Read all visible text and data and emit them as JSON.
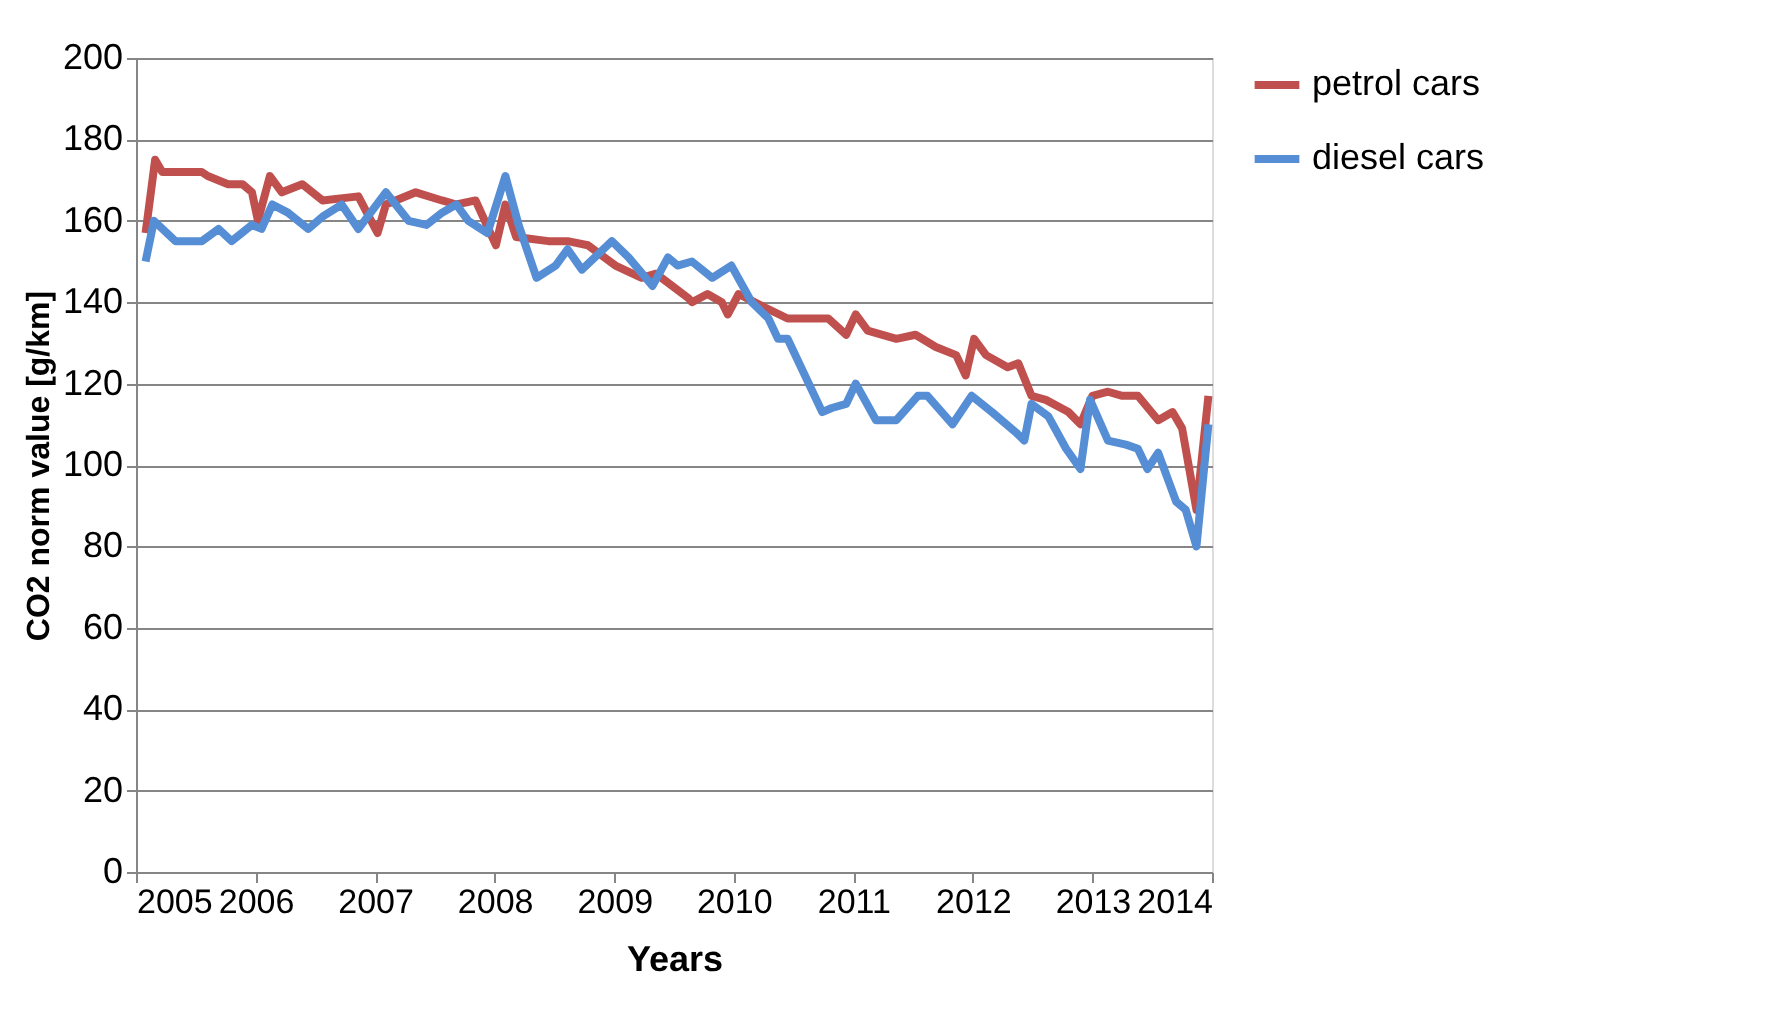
{
  "chart_data": {
    "type": "line",
    "xlabel": "Years",
    "ylabel": "CO2 norm  value [g/km]",
    "xlim": [
      2005,
      2014
    ],
    "xticks": [
      2005,
      2006,
      2007,
      2008,
      2009,
      2010,
      2011,
      2012,
      2013,
      2014
    ],
    "ylim": [
      0,
      200
    ],
    "yticks": [
      0,
      20,
      40,
      60,
      80,
      100,
      120,
      140,
      160,
      180,
      200
    ],
    "grid": "y",
    "legend": "right",
    "marker": "none",
    "line_style": "solid",
    "series": [
      {
        "name": "petrol cars",
        "color": "#c0504d",
        "x": [
          2005.08,
          2005.16,
          2005.22,
          2005.55,
          2005.6,
          2005.77,
          2005.89,
          2005.97,
          2006.02,
          2006.12,
          2006.22,
          2006.39,
          2006.56,
          2006.86,
          2007.02,
          2007.09,
          2007.34,
          2007.56,
          2007.68,
          2007.84,
          2008.01,
          2008.09,
          2008.18,
          2008.45,
          2008.61,
          2008.78,
          2009.01,
          2009.23,
          2009.35,
          2009.62,
          2009.65,
          2009.78,
          2009.9,
          2009.95,
          2010.04,
          2010.24,
          2010.45,
          2010.69,
          2010.79,
          2010.94,
          2011.02,
          2011.12,
          2011.36,
          2011.52,
          2011.69,
          2011.86,
          2011.94,
          2012.01,
          2012.11,
          2012.29,
          2012.38,
          2012.49,
          2012.61,
          2012.8,
          2012.9,
          2013.0,
          2013.13,
          2013.25,
          2013.38,
          2013.55,
          2013.67,
          2013.75,
          2013.87,
          2013.97
        ],
        "values": [
          157,
          175,
          172,
          172,
          171,
          169,
          169,
          167,
          160,
          171,
          167,
          169,
          165,
          166,
          157,
          164,
          167,
          165,
          164,
          165,
          154,
          164,
          156,
          155,
          155,
          154,
          149,
          146,
          147,
          141,
          140,
          142,
          140,
          137,
          142,
          139,
          136,
          136,
          136,
          132,
          137,
          133,
          131,
          132,
          129,
          127,
          122,
          131,
          127,
          124,
          125,
          117,
          116,
          113,
          110,
          117,
          118,
          117,
          117,
          111,
          113,
          109,
          89,
          117
        ]
      },
      {
        "name": "diesel cars",
        "color": "#558ed5",
        "x": [
          2005.08,
          2005.15,
          2005.33,
          2005.55,
          2005.69,
          2005.8,
          2005.97,
          2006.05,
          2006.14,
          2006.27,
          2006.44,
          2006.56,
          2006.72,
          2006.86,
          2007.09,
          2007.28,
          2007.43,
          2007.56,
          2007.68,
          2007.78,
          2007.94,
          2008.09,
          2008.2,
          2008.35,
          2008.51,
          2008.61,
          2008.73,
          2008.98,
          2009.12,
          2009.32,
          2009.45,
          2009.53,
          2009.65,
          2009.82,
          2009.98,
          2010.15,
          2010.29,
          2010.37,
          2010.45,
          2010.74,
          2010.82,
          2010.94,
          2011.02,
          2011.19,
          2011.36,
          2011.54,
          2011.62,
          2011.83,
          2011.99,
          2012.16,
          2012.36,
          2012.43,
          2012.49,
          2012.63,
          2012.78,
          2012.9,
          2012.98,
          2013.13,
          2013.28,
          2013.38,
          2013.46,
          2013.55,
          2013.7,
          2013.78,
          2013.87,
          2013.97
        ],
        "values": [
          150,
          160,
          155,
          155,
          158,
          155,
          159,
          158,
          164,
          162,
          158,
          161,
          164,
          158,
          167,
          160,
          159,
          162,
          164,
          160,
          157,
          171,
          159,
          146,
          149,
          153,
          148,
          155,
          151,
          144,
          151,
          149,
          150,
          146,
          149,
          140,
          136,
          131,
          131,
          113,
          114,
          115,
          120,
          111,
          111,
          117,
          117,
          110,
          117,
          113,
          108,
          106,
          115,
          112,
          104,
          99,
          116,
          106,
          105,
          104,
          99,
          103,
          91,
          89,
          80,
          110
        ]
      }
    ]
  }
}
